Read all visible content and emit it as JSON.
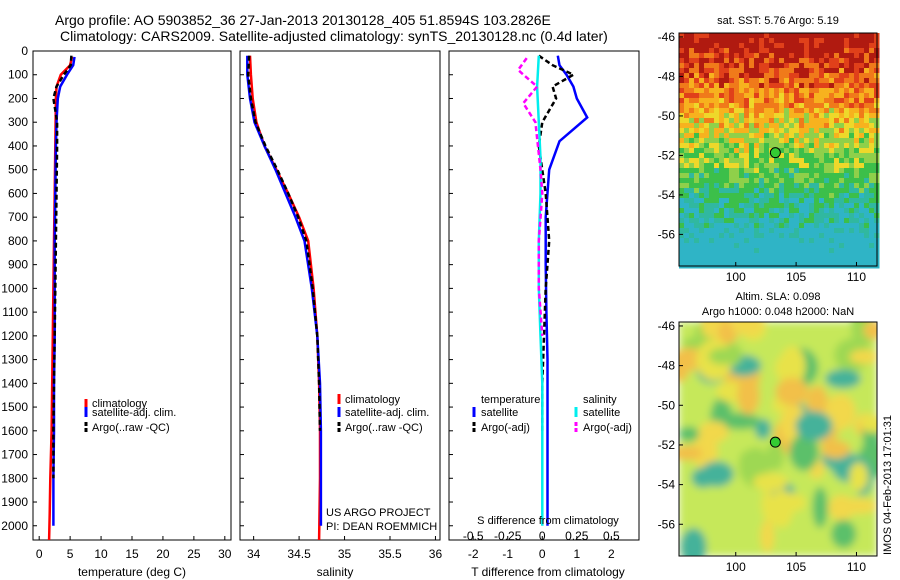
{
  "title": {
    "line1": "Argo profile: AO 5903852_36 27-Jan-2013 20130128_405 51.8594S 103.2826E",
    "line2": "Climatology: CARS2009. Satellite-adjusted climatology: synTS_20130128.nc (0.4d later)"
  },
  "depth_ticks": [
    "0",
    "100",
    "200",
    "300",
    "400",
    "500",
    "600",
    "700",
    "800",
    "900",
    "1000",
    "1100",
    "1200",
    "1300",
    "1400",
    "1500",
    "1600",
    "1700",
    "1800",
    "1900",
    "2000"
  ],
  "chart_data": [
    {
      "type": "line",
      "title": "temperature profile",
      "xlabel": "temperature (deg C)",
      "ylabel": "depth",
      "xlim": [
        -1,
        31
      ],
      "ylim": [
        2060,
        0
      ],
      "xticks": [
        "0",
        "5",
        "10",
        "15",
        "20",
        "25",
        "30"
      ],
      "series": [
        {
          "name": "climatology",
          "color": "#ff0000",
          "style": "solid",
          "x": [
            5.3,
            5.0,
            3.5,
            2.8,
            2.7,
            2.65,
            2.6,
            2.5,
            2.4,
            2.3,
            2.2,
            2.1,
            2.0,
            1.8,
            1.7,
            1.6
          ],
          "y": [
            25,
            60,
            100,
            150,
            200,
            300,
            400,
            600,
            800,
            1000,
            1200,
            1400,
            1600,
            1800,
            1950,
            2060
          ]
        },
        {
          "name": "satellite-adj. clim.",
          "color": "#0000ff",
          "style": "solid",
          "x": [
            5.7,
            5.5,
            4.5,
            3.4,
            3.0,
            2.8,
            2.7,
            2.6,
            2.5,
            2.5,
            2.5,
            2.4,
            2.4,
            2.3,
            2.3
          ],
          "y": [
            25,
            60,
            100,
            150,
            200,
            300,
            400,
            600,
            800,
            1000,
            1200,
            1400,
            1600,
            1800,
            2000
          ]
        },
        {
          "name": "Argo(..raw -QC)",
          "color": "#000000",
          "style": "dashed",
          "x": [
            5.2,
            5.1,
            4.0,
            2.8,
            2.3,
            2.6,
            2.9,
            2.9,
            2.8,
            2.7,
            2.6,
            2.5,
            2.4,
            2.3,
            2.3
          ],
          "y": [
            20,
            60,
            100,
            150,
            200,
            250,
            300,
            400,
            600,
            800,
            1000,
            1200,
            1400,
            1600,
            1800
          ]
        }
      ],
      "legend": [
        "climatology",
        "satellite-adj. clim.",
        "Argo(..raw -QC)"
      ]
    },
    {
      "type": "line",
      "title": "salinity profile",
      "xlabel": "salinity",
      "ylabel": "depth",
      "xlim": [
        33.85,
        36.05
      ],
      "ylim": [
        2060,
        0
      ],
      "xticks": [
        "34",
        "34.5",
        "35",
        "35.5",
        "36"
      ],
      "series": [
        {
          "name": "climatology",
          "color": "#ff0000",
          "style": "solid",
          "x": [
            33.96,
            33.97,
            33.99,
            34.03,
            34.12,
            34.25,
            34.38,
            34.5,
            34.6,
            34.66,
            34.7,
            34.72,
            34.73,
            34.73,
            34.72
          ],
          "y": [
            20,
            100,
            200,
            300,
            400,
            500,
            600,
            700,
            800,
            1000,
            1200,
            1400,
            1600,
            1800,
            2060
          ]
        },
        {
          "name": "satellite-adj. clim.",
          "color": "#0000ff",
          "style": "solid",
          "x": [
            33.93,
            33.93,
            33.96,
            34.01,
            34.12,
            34.24,
            34.35,
            34.46,
            34.56,
            34.64,
            34.7,
            34.73,
            34.74,
            34.74,
            34.74
          ],
          "y": [
            20,
            100,
            200,
            300,
            400,
            500,
            600,
            700,
            800,
            1000,
            1200,
            1400,
            1600,
            1800,
            2000
          ]
        },
        {
          "name": "Argo(..raw -QC)",
          "color": "#000000",
          "style": "dashed",
          "x": [
            33.95,
            33.94,
            33.97,
            34.02,
            34.13,
            34.26,
            34.38,
            34.49,
            34.58,
            34.65,
            34.7,
            34.72,
            34.73
          ],
          "y": [
            20,
            100,
            200,
            300,
            400,
            500,
            600,
            700,
            800,
            1000,
            1200,
            1400,
            1600
          ]
        }
      ],
      "legend": [
        "climatology",
        "satellite-adj. clim.",
        "Argo(..raw -QC)"
      ],
      "annotation": [
        "US ARGO PROJECT",
        "PI: DEAN ROEMMICH"
      ]
    },
    {
      "type": "line",
      "title": "difference from climatology",
      "xlabel": "T difference from climatology",
      "xlabel_top": "S difference from climatology",
      "xlim": [
        -2.7,
        2.8
      ],
      "ylim": [
        2060,
        0
      ],
      "xticks": [
        "-2",
        "-1",
        "0",
        "1",
        "2"
      ],
      "sticks": [
        "-0.5",
        "-0.25",
        "0",
        "0.25",
        "0.5"
      ],
      "series": [
        {
          "name": "temperature satellite",
          "color": "#0000ff",
          "style": "solid",
          "x": [
            0.45,
            0.5,
            0.7,
            0.9,
            1.0,
            1.3,
            0.5,
            0.2,
            0.1,
            0.1,
            0.12,
            0.15,
            0.15,
            0.15,
            0.15
          ],
          "y": [
            20,
            60,
            100,
            150,
            200,
            280,
            380,
            500,
            700,
            900,
            1100,
            1300,
            1500,
            1700,
            2000
          ]
        },
        {
          "name": "temperature Argo(-adj)",
          "color": "#000000",
          "style": "dashed",
          "x": [
            -0.1,
            0.3,
            0.9,
            0.3,
            0.4,
            0.0,
            -0.1,
            0.1,
            0.2,
            0.1,
            0.05,
            0.0,
            0.0
          ],
          "y": [
            20,
            60,
            100,
            150,
            200,
            300,
            400,
            600,
            800,
            1000,
            1200,
            1400,
            1600
          ]
        },
        {
          "name": "salinity satellite",
          "color": "#00eeee",
          "style": "solid",
          "x": [
            -0.1,
            -0.15,
            -0.1,
            -0.05,
            -0.05,
            -0.1,
            -0.1,
            -0.05,
            0.0,
            0.0,
            0.0,
            0.0
          ],
          "y": [
            20,
            150,
            300,
            450,
            600,
            800,
            1000,
            1200,
            1400,
            1600,
            1800,
            2000
          ]
        },
        {
          "name": "salinity Argo(-adj)",
          "color": "#ff00ff",
          "style": "dashed",
          "x": [
            -0.45,
            -0.7,
            -0.15,
            -0.55,
            -0.2,
            -0.05,
            0.0,
            -0.1,
            -0.1,
            0.0
          ],
          "y": [
            30,
            80,
            150,
            220,
            300,
            500,
            600,
            800,
            1000,
            1200
          ]
        }
      ],
      "legend_headers": [
        "temperature",
        "salinity"
      ],
      "legend": [
        "satellite",
        "Argo(-adj)",
        "satellite",
        "Argo(-adj)"
      ]
    },
    {
      "type": "heatmap",
      "title": "sat. SST: 5.76 Argo: 5.19",
      "xlim": [
        95.3,
        111.7
      ],
      "ylim": [
        -57.6,
        -45.8
      ],
      "xticks": [
        "100",
        "105",
        "110"
      ],
      "yticks": [
        "-46",
        "-48",
        "-50",
        "-52",
        "-54",
        "-56"
      ],
      "marker": {
        "lon": 103.28,
        "lat": -51.86
      }
    },
    {
      "type": "heatmap",
      "title_line1": "Altim. SLA: 0.098",
      "title_line2": "Argo h1000: 0.048 h2000: NaN",
      "xlim": [
        95.3,
        111.7
      ],
      "ylim": [
        -57.6,
        -45.8
      ],
      "xticks": [
        "100",
        "105",
        "110"
      ],
      "yticks": [
        "-46",
        "-48",
        "-50",
        "-52",
        "-54",
        "-56"
      ],
      "marker": {
        "lon": 103.28,
        "lat": -51.86
      }
    }
  ],
  "side_label": "IMOS 04-Feb-2013 17:01:31"
}
